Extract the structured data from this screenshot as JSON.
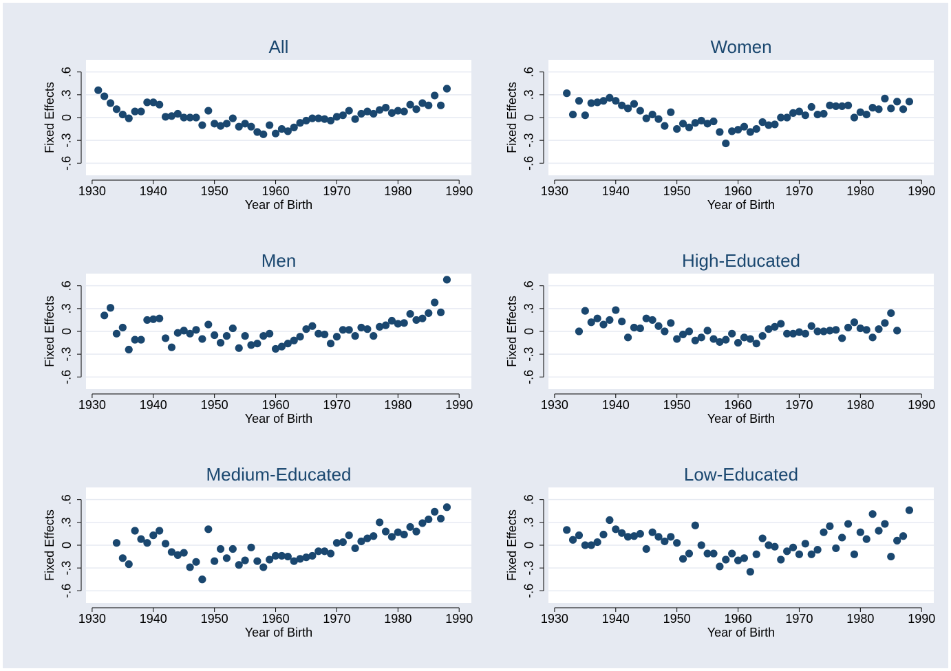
{
  "chart_data": [
    {
      "type": "scatter",
      "title": "All",
      "xlabel": "Year of Birth",
      "ylabel": "Fixed Effects",
      "color": "#1a476f",
      "grid": true,
      "xlim": [
        1929,
        1992
      ],
      "ylim": [
        -0.76,
        0.76
      ],
      "xticks": [
        1930,
        1940,
        1950,
        1960,
        1970,
        1980,
        1990
      ],
      "yticks": [
        {
          "value": -0.6,
          "label": "-.6"
        },
        {
          "value": -0.3,
          "label": "-.3"
        },
        0,
        {
          "value": 0.3,
          "label": ".3"
        },
        {
          "value": 0.6,
          "label": ".6"
        }
      ],
      "x": [
        1931,
        1932,
        1933,
        1934,
        1935,
        1936,
        1937,
        1938,
        1939,
        1940,
        1941,
        1942,
        1943,
        1944,
        1945,
        1946,
        1947,
        1948,
        1949,
        1950,
        1951,
        1952,
        1953,
        1954,
        1955,
        1956,
        1957,
        1958,
        1959,
        1960,
        1961,
        1962,
        1963,
        1964,
        1965,
        1966,
        1967,
        1968,
        1969,
        1970,
        1971,
        1972,
        1973,
        1974,
        1975,
        1976,
        1977,
        1978,
        1979,
        1980,
        1981,
        1982,
        1983,
        1984,
        1985,
        1986,
        1987,
        1988
      ],
      "values": [
        0.36,
        0.28,
        0.19,
        0.11,
        0.04,
        -0.01,
        0.08,
        0.08,
        0.2,
        0.2,
        0.17,
        0.01,
        0.02,
        0.05,
        0.0,
        0.0,
        0.0,
        -0.1,
        0.09,
        -0.08,
        -0.11,
        -0.08,
        -0.01,
        -0.12,
        -0.08,
        -0.12,
        -0.19,
        -0.22,
        -0.1,
        -0.21,
        -0.15,
        -0.18,
        -0.13,
        -0.07,
        -0.04,
        -0.01,
        -0.01,
        -0.02,
        -0.04,
        0.01,
        0.03,
        0.09,
        -0.02,
        0.05,
        0.08,
        0.05,
        0.1,
        0.13,
        0.06,
        0.09,
        0.08,
        0.17,
        0.11,
        0.19,
        0.16,
        0.29,
        0.16,
        0.38
      ]
    },
    {
      "type": "scatter",
      "title": "Women",
      "xlabel": "Year of Birth",
      "ylabel": "Fixed Effects",
      "color": "#1a476f",
      "grid": true,
      "xlim": [
        1929,
        1992
      ],
      "ylim": [
        -0.76,
        0.76
      ],
      "xticks": [
        1930,
        1940,
        1950,
        1960,
        1970,
        1980,
        1990
      ],
      "yticks": [
        {
          "value": -0.6,
          "label": "-.6"
        },
        {
          "value": -0.3,
          "label": "-.3"
        },
        0,
        {
          "value": 0.3,
          "label": ".3"
        },
        {
          "value": 0.6,
          "label": ".6"
        }
      ],
      "x": [
        1932,
        1933,
        1934,
        1935,
        1936,
        1937,
        1938,
        1939,
        1940,
        1941,
        1942,
        1943,
        1944,
        1945,
        1946,
        1947,
        1948,
        1949,
        1950,
        1951,
        1952,
        1953,
        1954,
        1955,
        1956,
        1957,
        1958,
        1959,
        1960,
        1961,
        1962,
        1963,
        1964,
        1965,
        1966,
        1967,
        1968,
        1969,
        1970,
        1971,
        1972,
        1973,
        1974,
        1975,
        1976,
        1977,
        1978,
        1979,
        1980,
        1981,
        1982,
        1983,
        1984,
        1985,
        1986,
        1987,
        1988
      ],
      "values": [
        0.32,
        0.04,
        0.22,
        0.03,
        0.19,
        0.2,
        0.22,
        0.26,
        0.22,
        0.16,
        0.12,
        0.18,
        0.09,
        -0.01,
        0.04,
        -0.02,
        -0.11,
        0.07,
        -0.15,
        -0.08,
        -0.13,
        -0.07,
        -0.04,
        -0.08,
        -0.05,
        -0.19,
        -0.34,
        -0.18,
        -0.16,
        -0.12,
        -0.19,
        -0.15,
        -0.06,
        -0.1,
        -0.09,
        0.0,
        0.0,
        0.06,
        0.08,
        0.03,
        0.14,
        0.04,
        0.05,
        0.16,
        0.15,
        0.15,
        0.16,
        0.0,
        0.07,
        0.04,
        0.13,
        0.11,
        0.25,
        0.12,
        0.21,
        0.11,
        0.21
      ]
    },
    {
      "type": "scatter",
      "title": "Men",
      "xlabel": "Year of Birth",
      "ylabel": "Fixed Effects",
      "color": "#1a476f",
      "grid": true,
      "xlim": [
        1929,
        1992
      ],
      "ylim": [
        -0.76,
        0.76
      ],
      "xticks": [
        1930,
        1940,
        1950,
        1960,
        1970,
        1980,
        1990
      ],
      "yticks": [
        {
          "value": -0.6,
          "label": "-.6"
        },
        {
          "value": -0.3,
          "label": "-.3"
        },
        0,
        {
          "value": 0.3,
          "label": ".3"
        },
        {
          "value": 0.6,
          "label": ".6"
        }
      ],
      "x": [
        1932,
        1933,
        1934,
        1935,
        1936,
        1937,
        1938,
        1939,
        1940,
        1941,
        1942,
        1943,
        1944,
        1945,
        1946,
        1947,
        1948,
        1949,
        1950,
        1951,
        1952,
        1953,
        1954,
        1955,
        1956,
        1957,
        1958,
        1959,
        1960,
        1961,
        1962,
        1963,
        1964,
        1965,
        1966,
        1967,
        1968,
        1969,
        1970,
        1971,
        1972,
        1973,
        1974,
        1975,
        1976,
        1977,
        1978,
        1979,
        1980,
        1981,
        1982,
        1983,
        1984,
        1985,
        1986,
        1987,
        1988
      ],
      "values": [
        0.21,
        0.31,
        -0.03,
        0.05,
        -0.24,
        -0.11,
        -0.11,
        0.15,
        0.16,
        0.17,
        -0.09,
        -0.21,
        -0.02,
        0.01,
        -0.03,
        0.02,
        -0.1,
        0.09,
        -0.05,
        -0.15,
        -0.06,
        0.04,
        -0.22,
        -0.06,
        -0.18,
        -0.16,
        -0.06,
        -0.03,
        -0.23,
        -0.2,
        -0.16,
        -0.12,
        -0.07,
        0.03,
        0.07,
        -0.03,
        -0.04,
        -0.16,
        -0.07,
        0.02,
        0.02,
        -0.06,
        0.05,
        0.03,
        -0.06,
        0.06,
        0.08,
        0.14,
        0.1,
        0.11,
        0.23,
        0.15,
        0.17,
        0.24,
        0.38,
        0.25,
        0.68
      ]
    },
    {
      "type": "scatter",
      "title": "High-Educated",
      "xlabel": "Year of Birth",
      "ylabel": "Fixed Effects",
      "color": "#1a476f",
      "grid": true,
      "xlim": [
        1929,
        1992
      ],
      "ylim": [
        -0.76,
        0.76
      ],
      "xticks": [
        1930,
        1940,
        1950,
        1960,
        1970,
        1980,
        1990
      ],
      "yticks": [
        {
          "value": -0.6,
          "label": "-.6"
        },
        {
          "value": -0.3,
          "label": "-.3"
        },
        0,
        {
          "value": 0.3,
          "label": ".3"
        },
        {
          "value": 0.6,
          "label": ".6"
        }
      ],
      "x": [
        1934,
        1935,
        1936,
        1937,
        1938,
        1939,
        1940,
        1941,
        1942,
        1943,
        1944,
        1945,
        1946,
        1947,
        1948,
        1949,
        1950,
        1951,
        1952,
        1953,
        1954,
        1955,
        1956,
        1957,
        1958,
        1959,
        1960,
        1961,
        1962,
        1963,
        1964,
        1965,
        1966,
        1967,
        1968,
        1969,
        1970,
        1971,
        1972,
        1973,
        1974,
        1975,
        1976,
        1977,
        1978,
        1979,
        1980,
        1981,
        1982,
        1983,
        1984,
        1985,
        1986
      ],
      "values": [
        0.0,
        0.27,
        0.12,
        0.17,
        0.09,
        0.15,
        0.28,
        0.13,
        -0.08,
        0.05,
        0.04,
        0.17,
        0.15,
        0.07,
        0.0,
        0.11,
        -0.1,
        -0.04,
        0.0,
        -0.12,
        -0.08,
        0.01,
        -0.1,
        -0.14,
        -0.11,
        -0.03,
        -0.15,
        -0.08,
        -0.1,
        -0.16,
        -0.06,
        0.03,
        0.06,
        0.1,
        -0.03,
        -0.03,
        -0.01,
        -0.03,
        0.07,
        0.0,
        0.0,
        0.01,
        0.02,
        -0.09,
        0.05,
        0.12,
        0.04,
        0.02,
        -0.08,
        0.03,
        0.11,
        0.24,
        0.01
      ]
    },
    {
      "type": "scatter",
      "title": "Medium-Educated",
      "xlabel": "Year of Birth",
      "ylabel": "Fixed Effects",
      "color": "#1a476f",
      "grid": true,
      "xlim": [
        1929,
        1992
      ],
      "ylim": [
        -0.76,
        0.76
      ],
      "xticks": [
        1930,
        1940,
        1950,
        1960,
        1970,
        1980,
        1990
      ],
      "yticks": [
        {
          "value": -0.6,
          "label": "-.6"
        },
        {
          "value": -0.3,
          "label": "-.3"
        },
        0,
        {
          "value": 0.3,
          "label": ".3"
        },
        {
          "value": 0.6,
          "label": ".6"
        }
      ],
      "x": [
        1934,
        1935,
        1936,
        1937,
        1938,
        1939,
        1940,
        1941,
        1942,
        1943,
        1944,
        1945,
        1946,
        1947,
        1948,
        1949,
        1950,
        1951,
        1952,
        1953,
        1954,
        1955,
        1956,
        1957,
        1958,
        1959,
        1960,
        1961,
        1962,
        1963,
        1964,
        1965,
        1966,
        1967,
        1968,
        1969,
        1970,
        1971,
        1972,
        1973,
        1974,
        1975,
        1976,
        1977,
        1978,
        1979,
        1980,
        1981,
        1982,
        1983,
        1984,
        1985,
        1986,
        1987,
        1988
      ],
      "values": [
        0.03,
        -0.17,
        -0.25,
        0.19,
        0.08,
        0.03,
        0.13,
        0.19,
        0.02,
        -0.09,
        -0.13,
        -0.1,
        -0.29,
        -0.22,
        -0.45,
        0.21,
        -0.21,
        -0.05,
        -0.17,
        -0.05,
        -0.26,
        -0.2,
        -0.03,
        -0.21,
        -0.29,
        -0.19,
        -0.14,
        -0.14,
        -0.15,
        -0.21,
        -0.18,
        -0.16,
        -0.14,
        -0.08,
        -0.08,
        -0.11,
        0.03,
        0.04,
        0.13,
        -0.04,
        0.05,
        0.09,
        0.12,
        0.3,
        0.18,
        0.11,
        0.17,
        0.14,
        0.24,
        0.18,
        0.29,
        0.34,
        0.44,
        0.35,
        0.5
      ]
    },
    {
      "type": "scatter",
      "title": "Low-Educated",
      "xlabel": "Year of Birth",
      "ylabel": "Fixed Effects",
      "color": "#1a476f",
      "grid": true,
      "xlim": [
        1929,
        1992
      ],
      "ylim": [
        -0.76,
        0.76
      ],
      "xticks": [
        1930,
        1940,
        1950,
        1960,
        1970,
        1980,
        1990
      ],
      "yticks": [
        {
          "value": -0.6,
          "label": "-.6"
        },
        {
          "value": -0.3,
          "label": "-.3"
        },
        0,
        {
          "value": 0.3,
          "label": ".3"
        },
        {
          "value": 0.6,
          "label": ".6"
        }
      ],
      "x": [
        1932,
        1933,
        1934,
        1935,
        1936,
        1937,
        1938,
        1939,
        1940,
        1941,
        1942,
        1943,
        1944,
        1945,
        1946,
        1947,
        1948,
        1949,
        1950,
        1951,
        1952,
        1953,
        1954,
        1955,
        1956,
        1957,
        1958,
        1959,
        1960,
        1961,
        1962,
        1963,
        1964,
        1965,
        1966,
        1967,
        1968,
        1969,
        1970,
        1971,
        1972,
        1973,
        1974,
        1975,
        1976,
        1977,
        1978,
        1979,
        1980,
        1981,
        1982,
        1983,
        1984,
        1985,
        1986,
        1987,
        1988
      ],
      "values": [
        0.2,
        0.07,
        0.13,
        0.0,
        0.0,
        0.04,
        0.14,
        0.33,
        0.21,
        0.16,
        0.11,
        0.12,
        0.15,
        -0.05,
        0.17,
        0.11,
        0.05,
        0.11,
        0.03,
        -0.18,
        -0.11,
        0.26,
        0.0,
        -0.11,
        -0.11,
        -0.28,
        -0.19,
        -0.11,
        -0.2,
        -0.17,
        -0.35,
        -0.12,
        0.09,
        0.0,
        -0.02,
        -0.19,
        -0.08,
        -0.03,
        -0.12,
        0.02,
        -0.12,
        -0.06,
        0.17,
        0.25,
        -0.04,
        0.1,
        0.28,
        -0.12,
        0.17,
        0.08,
        0.41,
        0.19,
        0.28,
        -0.15,
        0.06,
        0.12,
        0.46
      ]
    }
  ]
}
